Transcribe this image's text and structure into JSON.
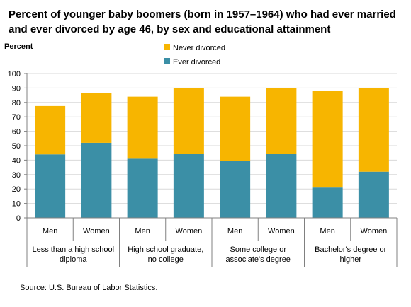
{
  "chart_data": {
    "type": "bar",
    "stacked": true,
    "title": "Percent of younger baby boomers (born in 1957–1964) who had ever married and ever divorced by age 46, by sex and educational attainment",
    "ylabel": "Percent",
    "ylim": [
      0,
      100
    ],
    "yticks": [
      0,
      10,
      20,
      30,
      40,
      50,
      60,
      70,
      80,
      90,
      100
    ],
    "grid": true,
    "legend_position": "top-right",
    "groups": [
      "Less than  a high school diploma",
      "High school graduate, no college",
      "Some college or associate's degree",
      "Bachelor's degree or higher"
    ],
    "categories": [
      "Men",
      "Women",
      "Men",
      "Women",
      "Men",
      "Women",
      "Men",
      "Women"
    ],
    "series": [
      {
        "name": "Ever divorced",
        "color": "#3b8fa6",
        "values": [
          44,
          52,
          41,
          44.5,
          39.5,
          44.5,
          21,
          32
        ]
      },
      {
        "name": "Never divorced",
        "color": "#f7b500",
        "values": [
          33.5,
          34.5,
          43,
          45.5,
          44.5,
          45.5,
          67,
          58
        ]
      }
    ],
    "legend_order": [
      "Never divorced",
      "Ever divorced"
    ]
  },
  "source": "Source: U.S. Bureau of Labor Statistics."
}
